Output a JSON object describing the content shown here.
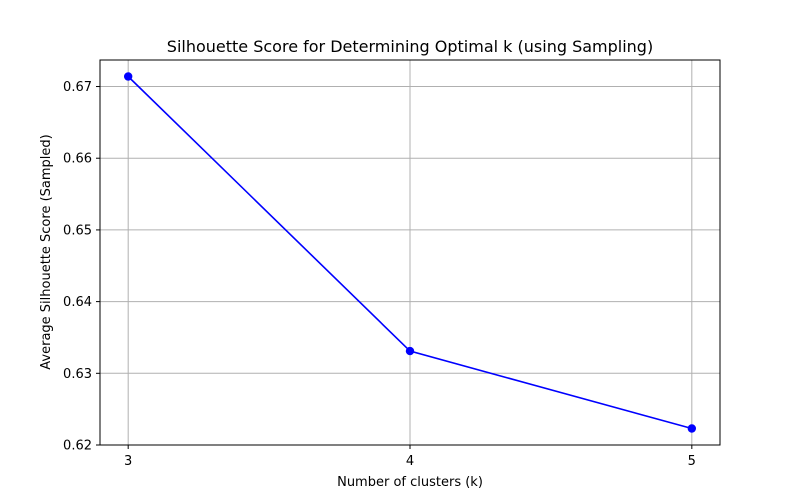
{
  "chart_data": {
    "type": "line",
    "title": "Silhouette Score for Determining Optimal k (using Sampling)",
    "xlabel": "Number of clusters (k)",
    "ylabel": "Average Silhouette Score (Sampled)",
    "x": [
      3,
      4,
      5
    ],
    "series": [
      {
        "values": [
          0.6714,
          0.6331,
          0.6223
        ],
        "color": "#0000ff",
        "marker": "circle"
      }
    ],
    "xticks": [
      3,
      4,
      5
    ],
    "xtick_labels": [
      "3",
      "4",
      "5"
    ],
    "yticks": [
      0.62,
      0.63,
      0.64,
      0.65,
      0.66,
      0.67
    ],
    "ytick_labels": [
      "0.62",
      "0.63",
      "0.64",
      "0.65",
      "0.66",
      "0.67"
    ],
    "xlim": [
      2.9,
      5.1
    ],
    "ylim": [
      0.62,
      0.6737
    ],
    "grid": true
  }
}
